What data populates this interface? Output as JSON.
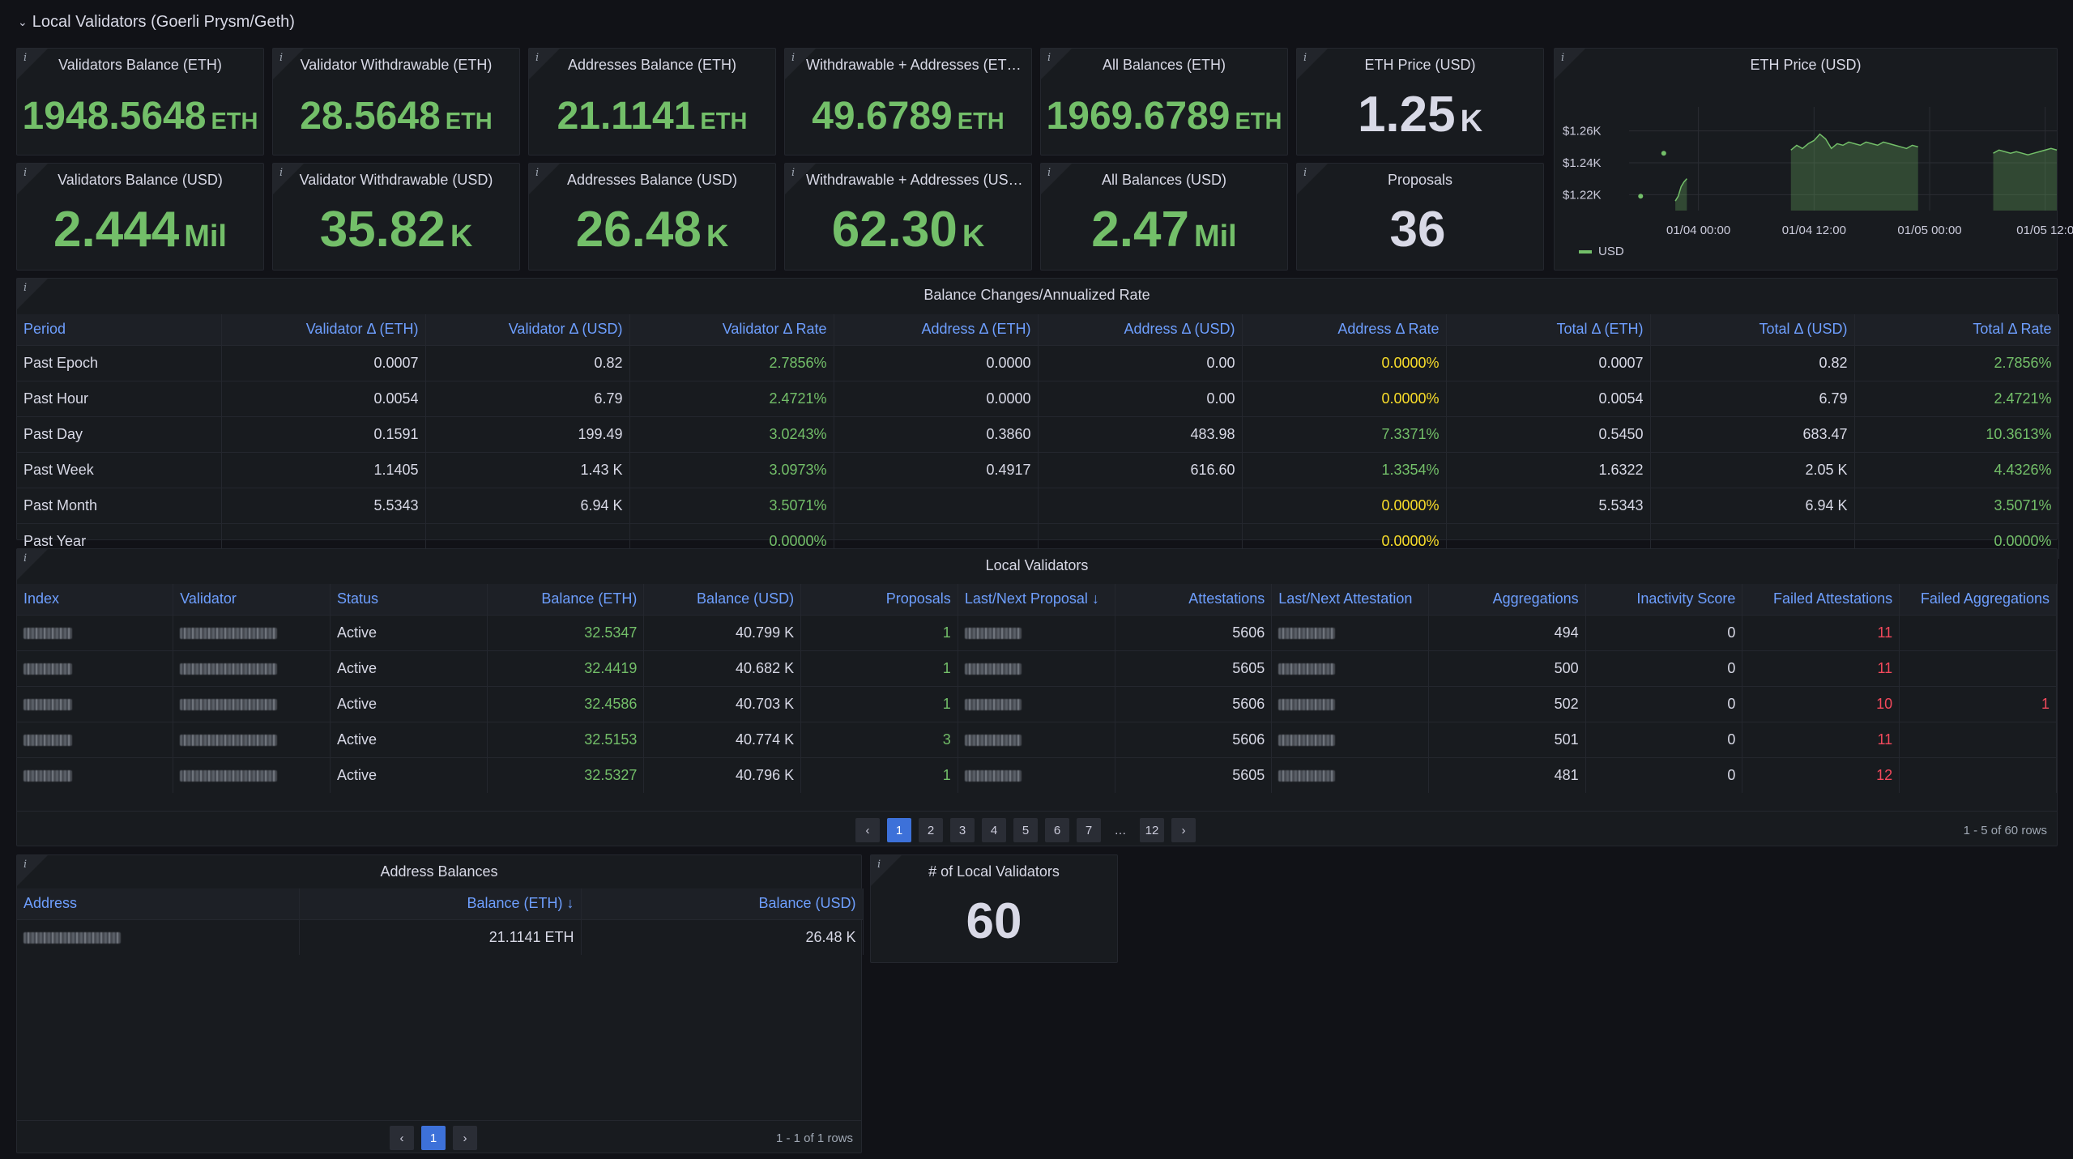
{
  "row_title": "Local Validators (Goerli Prysm/Geth)",
  "info_glyph": "i",
  "stats_top": [
    {
      "title": "Validators Balance (ETH)",
      "value": "1948.5648",
      "unit": "ETH"
    },
    {
      "title": "Validator Withdrawable (ETH)",
      "value": "28.5648",
      "unit": "ETH"
    },
    {
      "title": "Addresses Balance (ETH)",
      "value": "21.1141",
      "unit": "ETH"
    },
    {
      "title": "Withdrawable + Addresses (ET…",
      "value": "49.6789",
      "unit": "ETH"
    },
    {
      "title": "All Balances (ETH)",
      "value": "1969.6789",
      "unit": "ETH"
    },
    {
      "title": "ETH Price (USD)",
      "value": "1.25",
      "unit": "K"
    }
  ],
  "stats_bottom": [
    {
      "title": "Validators Balance (USD)",
      "value": "2.444",
      "unit": "Mil"
    },
    {
      "title": "Validator Withdrawable (USD)",
      "value": "35.82",
      "unit": "K"
    },
    {
      "title": "Addresses Balance (USD)",
      "value": "26.48",
      "unit": "K"
    },
    {
      "title": "Withdrawable + Addresses (US…",
      "value": "62.30",
      "unit": "K"
    },
    {
      "title": "All Balances (USD)",
      "value": "2.47",
      "unit": "Mil"
    },
    {
      "title": "Proposals",
      "value": "36",
      "unit": ""
    }
  ],
  "price_chart": {
    "title": "ETH Price (USD)",
    "legend": "USD",
    "color": "#73bf69",
    "chart_data": {
      "type": "area",
      "y_ticks": [
        "$1.22K",
        "$1.24K",
        "$1.26K"
      ],
      "x_ticks": [
        "01/04 00:00",
        "01/04 12:00",
        "01/05 00:00",
        "01/05 12:0"
      ],
      "ylim": [
        1210,
        1270
      ],
      "series": [
        {
          "name": "USD",
          "segments": [
            [
              [
                2,
                1219
              ]
            ],
            [
              [
                6,
                1246
              ]
            ],
            [
              [
                8,
                1216
              ],
              [
                8.5,
                1219
              ],
              [
                9,
                1225
              ],
              [
                9.5,
                1228
              ],
              [
                10,
                1230
              ]
            ],
            [
              [
                28,
                1248
              ],
              [
                29,
                1251
              ],
              [
                30,
                1249
              ],
              [
                31,
                1252
              ],
              [
                32,
                1254
              ],
              [
                33,
                1258
              ],
              [
                34,
                1255
              ],
              [
                35,
                1249
              ],
              [
                36,
                1252
              ],
              [
                37,
                1251
              ],
              [
                38,
                1253
              ],
              [
                39,
                1252
              ],
              [
                40,
                1251
              ],
              [
                41,
                1253
              ],
              [
                42,
                1252
              ],
              [
                43,
                1251
              ],
              [
                44,
                1253
              ],
              [
                45,
                1252
              ],
              [
                46,
                1251
              ],
              [
                47,
                1250
              ],
              [
                48,
                1249
              ],
              [
                49,
                1251
              ],
              [
                50,
                1250
              ]
            ],
            [
              [
                63,
                1246
              ],
              [
                64,
                1248
              ],
              [
                65,
                1247
              ],
              [
                66,
                1246
              ],
              [
                67,
                1247
              ],
              [
                68,
                1246
              ],
              [
                69,
                1245
              ],
              [
                70,
                1246
              ],
              [
                71,
                1247
              ],
              [
                72,
                1248
              ],
              [
                73,
                1249
              ],
              [
                74,
                1248
              ]
            ]
          ]
        }
      ],
      "x_tick_positions": [
        12,
        32,
        52,
        72
      ],
      "xlim": [
        0,
        74
      ]
    }
  },
  "balance_changes": {
    "title": "Balance Changes/Annualized Rate",
    "columns": [
      "Period",
      "Validator Δ (ETH)",
      "Validator Δ (USD)",
      "Validator Δ Rate",
      "Address Δ (ETH)",
      "Address Δ (USD)",
      "Address Δ Rate",
      "Total Δ (ETH)",
      "Total Δ (USD)",
      "Total Δ Rate"
    ],
    "rows": [
      [
        "Past Epoch",
        "0.0007",
        "0.82",
        "2.7856%",
        "0.0000",
        "0.00",
        "0.0000%",
        "0.0007",
        "0.82",
        "2.7856%"
      ],
      [
        "Past Hour",
        "0.0054",
        "6.79",
        "2.4721%",
        "0.0000",
        "0.00",
        "0.0000%",
        "0.0054",
        "6.79",
        "2.4721%"
      ],
      [
        "Past Day",
        "0.1591",
        "199.49",
        "3.0243%",
        "0.3860",
        "483.98",
        "7.3371%",
        "0.5450",
        "683.47",
        "10.3613%"
      ],
      [
        "Past Week",
        "1.1405",
        "1.43 K",
        "3.0973%",
        "0.4917",
        "616.60",
        "1.3354%",
        "1.6322",
        "2.05 K",
        "4.4326%"
      ],
      [
        "Past Month",
        "5.5343",
        "6.94 K",
        "3.5071%",
        "",
        "",
        "0.0000%",
        "5.5343",
        "6.94 K",
        "3.5071%"
      ],
      [
        "Past Year",
        "",
        "",
        "0.0000%",
        "",
        "",
        "0.0000%",
        "",
        "",
        "0.0000%"
      ]
    ]
  },
  "local_validators": {
    "title": "Local Validators",
    "columns": [
      "Index",
      "Validator",
      "Status",
      "Balance (ETH)",
      "Balance (USD)",
      "Proposals",
      "Last/Next Proposal ↓",
      "Attestations",
      "Last/Next Attestation",
      "Aggregations",
      "Inactivity Score",
      "Failed Attestations",
      "Failed Aggregations"
    ],
    "rows": [
      [
        "",
        "",
        "Active",
        "32.5347",
        "40.799 K",
        "1",
        "",
        "5606",
        "",
        "494",
        "0",
        "11",
        ""
      ],
      [
        "",
        "",
        "Active",
        "32.4419",
        "40.682 K",
        "1",
        "",
        "5605",
        "",
        "500",
        "0",
        "11",
        ""
      ],
      [
        "",
        "",
        "Active",
        "32.4586",
        "40.703 K",
        "1",
        "",
        "5606",
        "",
        "502",
        "0",
        "10",
        "1"
      ],
      [
        "",
        "",
        "Active",
        "32.5153",
        "40.774 K",
        "3",
        "",
        "5606",
        "",
        "501",
        "0",
        "11",
        ""
      ],
      [
        "",
        "",
        "Active",
        "32.5327",
        "40.796 K",
        "1",
        "",
        "5605",
        "",
        "481",
        "0",
        "12",
        ""
      ]
    ],
    "pager": {
      "prev": "‹",
      "pages": [
        "1",
        "2",
        "3",
        "4",
        "5",
        "6",
        "7",
        "…",
        "12"
      ],
      "next": "›",
      "active": "1"
    },
    "row_count": "1 - 5 of 60 rows"
  },
  "address_balances": {
    "title": "Address Balances",
    "columns": [
      "Address",
      "Balance (ETH) ↓",
      "Balance (USD)"
    ],
    "rows": [
      [
        "",
        "21.1141 ETH",
        "26.48 K"
      ]
    ],
    "pager": {
      "prev": "‹",
      "pages": [
        "1"
      ],
      "next": "›",
      "active": "1"
    },
    "row_count": "1 - 1 of 1 rows"
  },
  "local_validator_count": {
    "title": "# of Local Validators",
    "value": "60"
  }
}
